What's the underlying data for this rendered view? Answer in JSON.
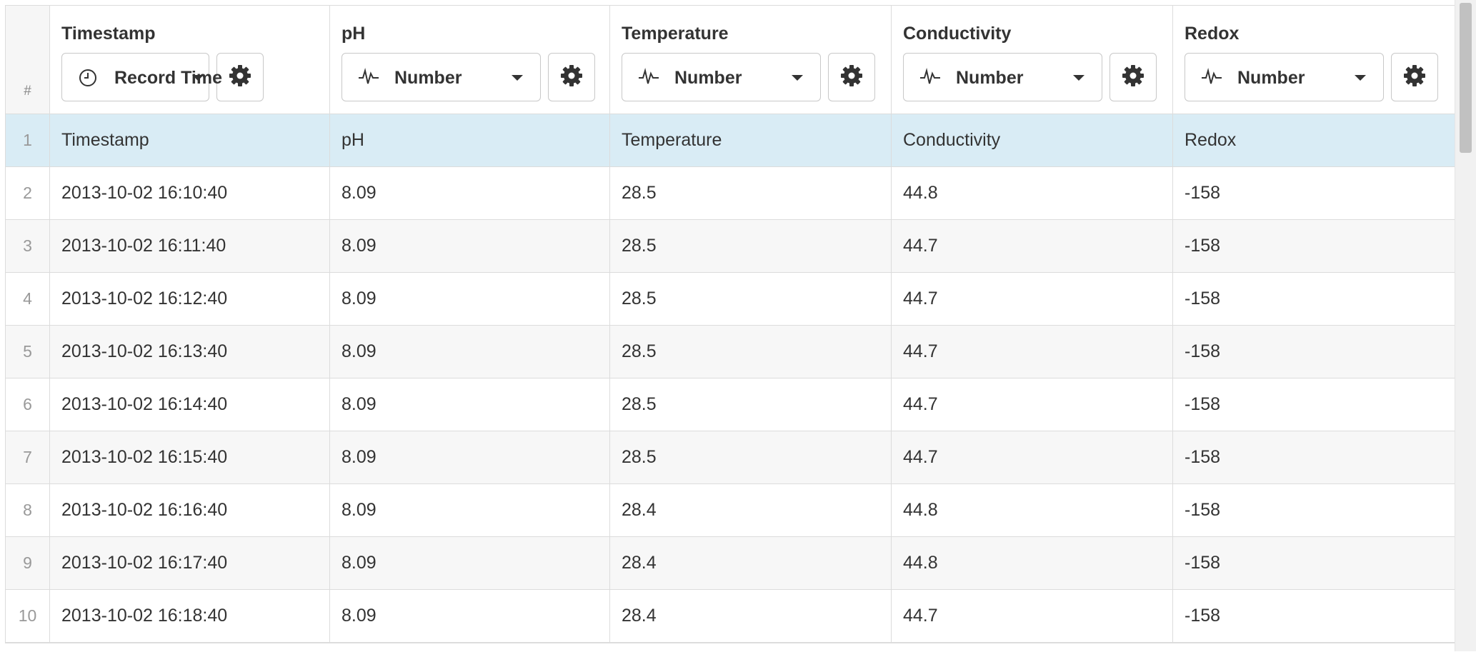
{
  "header": {
    "row_number_label": "#",
    "columns": [
      {
        "title": "Timestamp",
        "type_label": "Record Time",
        "type_icon": "clock-icon"
      },
      {
        "title": "pH",
        "type_label": "Number",
        "type_icon": "pulse-icon"
      },
      {
        "title": "Temperature",
        "type_label": "Number",
        "type_icon": "pulse-icon"
      },
      {
        "title": "Conductivity",
        "type_label": "Number",
        "type_icon": "pulse-icon"
      },
      {
        "title": "Redox",
        "type_label": "Number",
        "type_icon": "pulse-icon"
      }
    ]
  },
  "rows": [
    {
      "n": "1",
      "ts": "Timestamp",
      "ph": "pH",
      "temp": "Temperature",
      "cond": "Conductivity",
      "redox": "Redox"
    },
    {
      "n": "2",
      "ts": "2013-10-02 16:10:40",
      "ph": "8.09",
      "temp": "28.5",
      "cond": "44.8",
      "redox": "-158"
    },
    {
      "n": "3",
      "ts": "2013-10-02 16:11:40",
      "ph": "8.09",
      "temp": "28.5",
      "cond": "44.7",
      "redox": "-158"
    },
    {
      "n": "4",
      "ts": "2013-10-02 16:12:40",
      "ph": "8.09",
      "temp": "28.5",
      "cond": "44.7",
      "redox": "-158"
    },
    {
      "n": "5",
      "ts": "2013-10-02 16:13:40",
      "ph": "8.09",
      "temp": "28.5",
      "cond": "44.7",
      "redox": "-158"
    },
    {
      "n": "6",
      "ts": "2013-10-02 16:14:40",
      "ph": "8.09",
      "temp": "28.5",
      "cond": "44.7",
      "redox": "-158"
    },
    {
      "n": "7",
      "ts": "2013-10-02 16:15:40",
      "ph": "8.09",
      "temp": "28.5",
      "cond": "44.7",
      "redox": "-158"
    },
    {
      "n": "8",
      "ts": "2013-10-02 16:16:40",
      "ph": "8.09",
      "temp": "28.4",
      "cond": "44.8",
      "redox": "-158"
    },
    {
      "n": "9",
      "ts": "2013-10-02 16:17:40",
      "ph": "8.09",
      "temp": "28.4",
      "cond": "44.8",
      "redox": "-158"
    },
    {
      "n": "10",
      "ts": "2013-10-02 16:18:40",
      "ph": "8.09",
      "temp": "28.4",
      "cond": "44.7",
      "redox": "-158"
    }
  ],
  "colors": {
    "highlight_row": "#d9ecf5",
    "stripe_row": "#f7f7f7",
    "border": "#dcdcdc"
  }
}
